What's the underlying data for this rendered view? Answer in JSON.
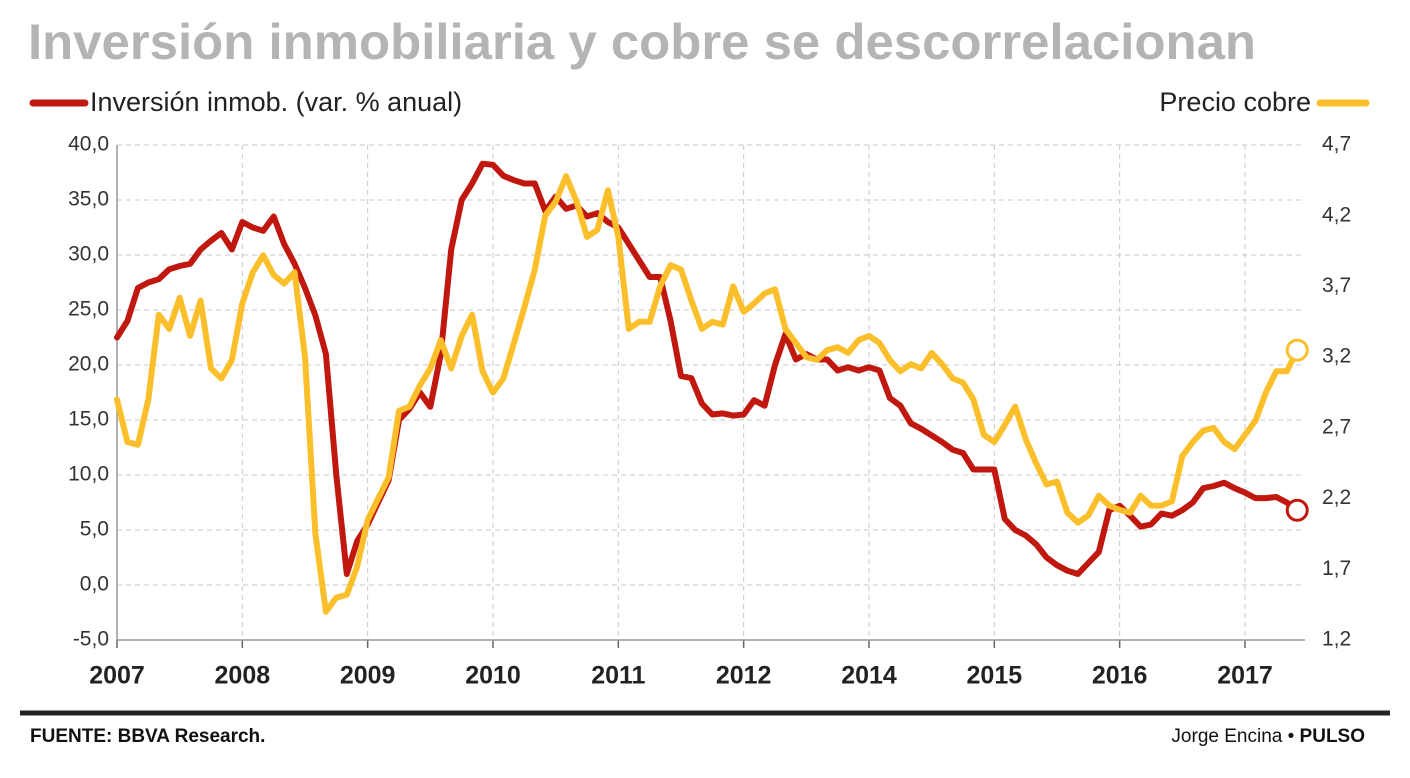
{
  "chart_data": {
    "type": "line",
    "title": "Inversión inmobiliaria y cobre se descorrelacionan",
    "source": "FUENTE: BBVA Research.",
    "author": "Jorge Encina",
    "publication": "PULSO",
    "categories": [
      "2007",
      null,
      null,
      null,
      null,
      null,
      null,
      null,
      null,
      null,
      null,
      null,
      "2008",
      null,
      null,
      null,
      null,
      null,
      null,
      null,
      null,
      null,
      null,
      null,
      "2009",
      null,
      null,
      null,
      null,
      null,
      null,
      null,
      null,
      null,
      null,
      null,
      "2010",
      null,
      null,
      null,
      null,
      null,
      null,
      null,
      null,
      null,
      null,
      null,
      "2011",
      null,
      null,
      null,
      null,
      null,
      null,
      null,
      null,
      null,
      null,
      null,
      "2012",
      null,
      null,
      null,
      null,
      null,
      null,
      null,
      null,
      null,
      null,
      null,
      "2014",
      null,
      null,
      null,
      null,
      null,
      null,
      null,
      null,
      null,
      null,
      null,
      "2015",
      null,
      null,
      null,
      null,
      null,
      null,
      null,
      null,
      null,
      null,
      null,
      "2016",
      null,
      null,
      null,
      null,
      null,
      null,
      null,
      null,
      null,
      null,
      null,
      "2017",
      null,
      null,
      null,
      null,
      null
    ],
    "series": [
      {
        "name": "Inversión inmob. (var. % anual)",
        "color": "#c0170f",
        "axis": "y",
        "values": [
          22.5,
          24,
          27,
          27.5,
          27.8,
          28.7,
          29,
          29.2,
          30.5,
          31.3,
          32,
          30.5,
          33,
          32.5,
          32.2,
          33.5,
          31,
          29.2,
          27,
          24.5,
          21,
          10,
          1,
          4,
          5.5,
          7.5,
          9.5,
          15,
          16,
          17.5,
          16.2,
          21,
          30.5,
          35,
          36.5,
          38.3,
          38.2,
          37.2,
          36.8,
          36.5,
          36.5,
          34,
          35.3,
          34.2,
          34.5,
          33.5,
          33.8,
          33,
          32.5,
          31,
          29.5,
          28,
          28,
          24,
          19,
          18.8,
          16.5,
          15.5,
          15.6,
          15.4,
          15.5,
          16.8,
          16.3,
          20,
          22.8,
          20.5,
          21,
          20.5,
          20.5,
          19.5,
          19.8,
          19.5,
          19.8,
          19.5,
          17,
          16.3,
          14.7,
          14.2,
          13.6,
          13,
          12.3,
          12,
          10.5,
          10.5,
          10.5,
          6,
          5,
          4.5,
          3.7,
          2.5,
          1.8,
          1.3,
          1,
          2,
          3,
          6.8,
          7.2,
          6.3,
          5.3,
          5.5,
          6.5,
          6.3,
          6.8,
          7.5,
          8.8,
          9,
          9.3,
          8.8,
          8.4,
          7.9,
          7.9,
          8,
          7.5,
          6.8
        ]
      },
      {
        "name": "Precio cobre",
        "color": "#fbbf2b",
        "axis": "y2",
        "values": [
          2.9,
          2.6,
          2.58,
          2.9,
          3.5,
          3.4,
          3.62,
          3.35,
          3.6,
          3.12,
          3.05,
          3.18,
          3.58,
          3.8,
          3.92,
          3.78,
          3.72,
          3.8,
          3.2,
          1.95,
          1.4,
          1.5,
          1.52,
          1.72,
          2.05,
          2.2,
          2.35,
          2.82,
          2.85,
          3.0,
          3.12,
          3.32,
          3.12,
          3.35,
          3.5,
          3.1,
          2.95,
          3.05,
          3.3,
          3.55,
          3.82,
          4.2,
          4.3,
          4.48,
          4.3,
          4.05,
          4.1,
          4.38,
          4.05,
          3.4,
          3.45,
          3.45,
          3.7,
          3.85,
          3.82,
          3.6,
          3.4,
          3.45,
          3.43,
          3.7,
          3.52,
          3.58,
          3.65,
          3.68,
          3.4,
          3.3,
          3.2,
          3.18,
          3.25,
          3.27,
          3.23,
          3.32,
          3.35,
          3.3,
          3.18,
          3.1,
          3.15,
          3.12,
          3.23,
          3.15,
          3.05,
          3.02,
          2.9,
          2.65,
          2.6,
          2.72,
          2.85,
          2.62,
          2.45,
          2.3,
          2.32,
          2.1,
          2.03,
          2.08,
          2.22,
          2.15,
          2.12,
          2.1,
          2.22,
          2.15,
          2.15,
          2.18,
          2.5,
          2.6,
          2.68,
          2.7,
          2.6,
          2.55,
          2.65,
          2.75,
          2.95,
          3.1,
          3.1,
          3.25
        ]
      }
    ],
    "ylim": [
      -5,
      40
    ],
    "yticks": [
      {
        "value": 40,
        "label": "40,0"
      },
      {
        "value": 35,
        "label": "35,0"
      },
      {
        "value": 30,
        "label": "30,0"
      },
      {
        "value": 25,
        "label": "25,0"
      },
      {
        "value": 20,
        "label": "20,0"
      },
      {
        "value": 15,
        "label": "15,0"
      },
      {
        "value": 10,
        "label": "10,0"
      },
      {
        "value": 5,
        "label": "5,0"
      },
      {
        "value": 0,
        "label": "0,0"
      },
      {
        "value": -5,
        "label": "-5,0"
      }
    ],
    "y2lim": [
      1.2,
      4.7
    ],
    "y2ticks": [
      {
        "value": 4.7,
        "label": "4,7"
      },
      {
        "value": 4.2,
        "label": "4,2"
      },
      {
        "value": 3.7,
        "label": "3,7"
      },
      {
        "value": 3.2,
        "label": "3,2"
      },
      {
        "value": 2.7,
        "label": "2,7"
      },
      {
        "value": 2.2,
        "label": "2,2"
      },
      {
        "value": 1.7,
        "label": "1,7"
      },
      {
        "value": 1.2,
        "label": "1,2"
      }
    ],
    "grid": true
  }
}
